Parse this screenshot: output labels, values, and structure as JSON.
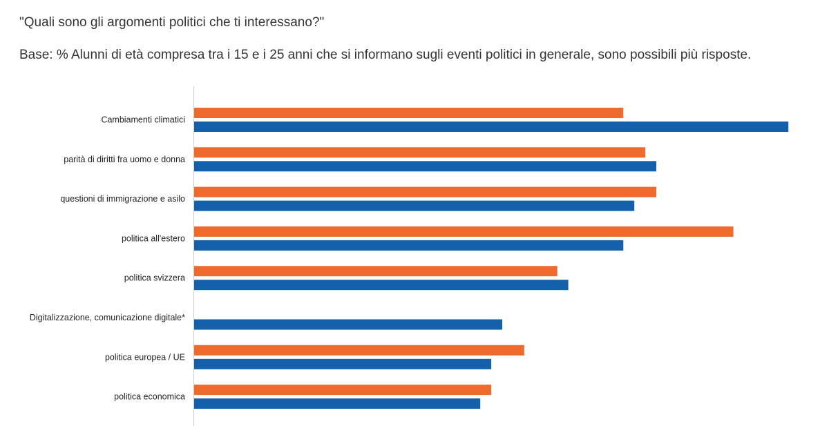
{
  "chart_data": {
    "type": "bar",
    "orientation": "horizontal",
    "title": "\"Quali sono gli argomenti politici che ti interessano?\"",
    "subtitle": "Base: % Alunni di età compresa tra i 15 e i 25 anni che si informano sugli eventi politici in generale, sono possibili più risposte.",
    "categories": [
      "Cambiamenti climatici",
      "parità di diritti fra uomo e donna",
      "questioni di immigrazione e asilo",
      "politica all'estero",
      "politica svizzera",
      "Digitalizzazione, comunicazione digitale*",
      "politica europea / UE",
      "politica economica"
    ],
    "series": [
      {
        "color": "#EE6B2D",
        "values": [
          39,
          41,
          42,
          49,
          33,
          null,
          30,
          27
        ]
      },
      {
        "color": "#1460AA",
        "values": [
          54,
          42,
          40,
          39,
          34,
          28,
          27,
          26
        ]
      }
    ],
    "xlim": [
      0,
      55
    ],
    "grid": false,
    "legend": "none"
  }
}
